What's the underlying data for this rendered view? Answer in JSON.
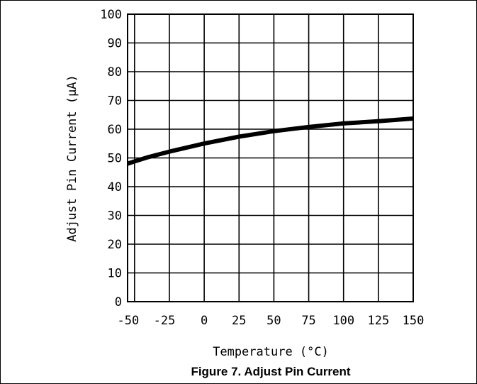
{
  "chart_data": {
    "type": "line",
    "xlabel": "Temperature (°C)",
    "ylabel": "Adjust Pin Current (µA)",
    "caption": "Figure 7. Adjust Pin Current",
    "xlim": [
      -55,
      150
    ],
    "ylim": [
      0,
      100
    ],
    "x_ticks": [
      -50,
      -25,
      0,
      25,
      50,
      75,
      100,
      125,
      150
    ],
    "x_tick_labels": [
      "-50",
      "-25",
      "0",
      "25",
      "50",
      "75",
      "100",
      "125",
      "150"
    ],
    "y_ticks": [
      0,
      10,
      20,
      30,
      40,
      50,
      60,
      70,
      80,
      90,
      100
    ],
    "y_tick_labels": [
      "0",
      "10",
      "20",
      "30",
      "40",
      "50",
      "60",
      "70",
      "80",
      "90",
      "100"
    ],
    "grid": true,
    "series": [
      {
        "x": [
          -55,
          -50,
          -40,
          -25,
          0,
          25,
          50,
          75,
          100,
          125,
          150
        ],
        "y": [
          48.0,
          48.8,
          50.3,
          52.2,
          55.0,
          57.4,
          59.3,
          60.8,
          62.0,
          62.8,
          63.7
        ]
      }
    ]
  }
}
